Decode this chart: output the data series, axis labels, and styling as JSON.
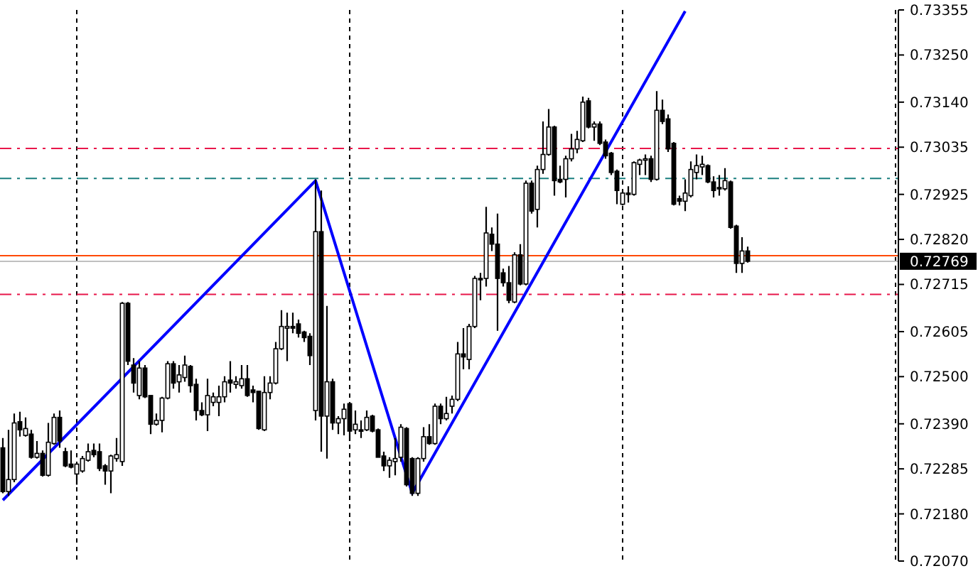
{
  "chart_data": {
    "type": "candlestick",
    "categories": [
      null,
      null,
      null,
      null,
      null,
      null,
      null,
      null,
      null,
      null,
      null,
      null,
      null,
      null,
      null,
      null,
      null,
      null,
      null,
      null,
      null,
      null,
      null,
      null,
      null,
      null,
      null,
      null,
      null,
      null,
      null,
      null,
      null,
      null,
      null,
      null,
      null,
      null,
      null,
      null,
      null,
      null,
      null,
      null,
      null,
      null,
      null,
      null,
      null,
      null,
      null,
      null,
      null,
      null,
      null,
      null,
      null,
      null,
      null,
      null,
      null,
      null,
      null,
      null,
      null,
      null,
      null,
      null,
      null,
      null,
      null,
      null,
      null,
      null,
      null,
      null,
      null,
      null,
      null,
      null,
      null,
      null,
      null,
      null,
      null,
      null,
      null,
      null,
      null,
      null,
      null,
      null,
      null,
      null,
      null,
      null,
      null,
      null,
      null,
      null,
      null,
      null,
      null,
      null,
      null,
      null,
      null,
      null,
      null,
      null,
      null,
      null,
      null,
      null,
      null,
      null,
      null,
      null,
      null,
      null,
      null,
      null,
      null,
      null,
      null,
      null,
      null,
      null,
      null,
      null,
      null,
      null,
      null,
      null,
      null,
      null,
      null,
      null,
      null,
      null,
      null,
      null,
      null,
      null,
      null,
      null,
      null,
      null,
      null,
      null,
      null,
      null,
      null,
      null,
      null,
      null,
      null,
      null
    ],
    "ohlc": [
      [
        0.72334,
        0.72357,
        0.72228,
        0.72232
      ],
      [
        0.72232,
        0.72376,
        0.72222,
        0.7226
      ],
      [
        0.7226,
        0.72414,
        0.72254,
        0.72392
      ],
      [
        0.72395,
        0.72418,
        0.7236,
        0.72376
      ],
      [
        0.72363,
        0.72405,
        0.7236,
        0.72379
      ],
      [
        0.72366,
        0.72376,
        0.72309,
        0.72312
      ],
      [
        0.72312,
        0.7235,
        0.72309,
        0.72321
      ],
      [
        0.72321,
        0.72328,
        0.72267,
        0.7227
      ],
      [
        0.7227,
        0.72392,
        0.72267,
        0.72347
      ],
      [
        0.72344,
        0.72414,
        0.72341,
        0.72405
      ],
      [
        0.72405,
        0.72421,
        0.72334,
        0.7235
      ],
      [
        0.72325,
        0.72334,
        0.72289,
        0.72292
      ],
      [
        0.72296,
        0.72328,
        0.72286,
        0.72289
      ],
      [
        0.72273,
        0.72299,
        0.72248,
        0.72296
      ],
      [
        0.7228,
        0.72315,
        0.72276,
        0.72309
      ],
      [
        0.72305,
        0.72344,
        0.72302,
        0.72325
      ],
      [
        0.72328,
        0.72344,
        0.72312,
        0.72318
      ],
      [
        0.72325,
        0.72344,
        0.7228,
        0.72286
      ],
      [
        0.72292,
        0.72296,
        0.72248,
        0.7228
      ],
      [
        0.7228,
        0.72318,
        0.72228,
        0.72315
      ],
      [
        0.72309,
        0.72357,
        0.72302,
        0.72318
      ],
      [
        0.72302,
        0.72674,
        0.72292,
        0.72671
      ],
      [
        0.72671,
        0.72674,
        0.72527,
        0.72536
      ],
      [
        0.72527,
        0.72543,
        0.72463,
        0.72485
      ],
      [
        0.72456,
        0.72536,
        0.72447,
        0.7252
      ],
      [
        0.7252,
        0.72527,
        0.7245,
        0.72453
      ],
      [
        0.72456,
        0.72456,
        0.72366,
        0.72389
      ],
      [
        0.72389,
        0.72414,
        0.72386,
        0.72398
      ],
      [
        0.72398,
        0.72453,
        0.7237,
        0.7245
      ],
      [
        0.7245,
        0.72536,
        0.72447,
        0.7253
      ],
      [
        0.7253,
        0.72536,
        0.72472,
        0.72485
      ],
      [
        0.72488,
        0.72527,
        0.72463,
        0.72504
      ],
      [
        0.72498,
        0.72549,
        0.72488,
        0.72527
      ],
      [
        0.72524,
        0.72527,
        0.72463,
        0.72479
      ],
      [
        0.72482,
        0.72495,
        0.72398,
        0.72421
      ],
      [
        0.72421,
        0.7244,
        0.72408,
        0.72411
      ],
      [
        0.72411,
        0.72495,
        0.72373,
        0.72456
      ],
      [
        0.7244,
        0.72463,
        0.72431,
        0.72453
      ],
      [
        0.7244,
        0.72479,
        0.72408,
        0.72453
      ],
      [
        0.72453,
        0.72501,
        0.7244,
        0.72488
      ],
      [
        0.72492,
        0.72536,
        0.72463,
        0.72485
      ],
      [
        0.72482,
        0.72501,
        0.72472,
        0.72488
      ],
      [
        0.72479,
        0.72527,
        0.72472,
        0.72495
      ],
      [
        0.72495,
        0.72527,
        0.72453,
        0.72456
      ],
      [
        0.72469,
        0.72479,
        0.7244,
        0.72463
      ],
      [
        0.72466,
        0.72466,
        0.72376,
        0.72379
      ],
      [
        0.72376,
        0.72501,
        0.72373,
        0.72463
      ],
      [
        0.72463,
        0.72501,
        0.72447,
        0.72485
      ],
      [
        0.72485,
        0.72581,
        0.72482,
        0.72565
      ],
      [
        0.72565,
        0.72655,
        0.72562,
        0.72617
      ],
      [
        0.72613,
        0.72649,
        0.72536,
        0.72617
      ],
      [
        0.72617,
        0.72649,
        0.72601,
        0.72613
      ],
      [
        0.72623,
        0.72633,
        0.72591,
        0.72601
      ],
      [
        0.72604,
        0.72607,
        0.72581,
        0.72591
      ],
      [
        0.72594,
        0.72601,
        0.72527,
        0.72549
      ],
      [
        0.72421,
        0.7296,
        0.72398,
        0.72838
      ],
      [
        0.72838,
        0.72934,
        0.72325,
        0.72408
      ],
      [
        0.72408,
        0.72665,
        0.72309,
        0.72488
      ],
      [
        0.72488,
        0.72495,
        0.72376,
        0.72392
      ],
      [
        0.72392,
        0.72408,
        0.72366,
        0.72402
      ],
      [
        0.72402,
        0.72437,
        0.72363,
        0.72424
      ],
      [
        0.72437,
        0.7244,
        0.7235,
        0.72373
      ],
      [
        0.72376,
        0.72421,
        0.72366,
        0.72389
      ],
      [
        0.72376,
        0.72398,
        0.72357,
        0.72373
      ],
      [
        0.72376,
        0.72421,
        0.72373,
        0.72405
      ],
      [
        0.72408,
        0.72411,
        0.7237,
        0.72373
      ],
      [
        0.72376,
        0.72379,
        0.72312,
        0.72312
      ],
      [
        0.72315,
        0.72325,
        0.7228,
        0.72292
      ],
      [
        0.72292,
        0.72312,
        0.72264,
        0.72305
      ],
      [
        0.72302,
        0.72357,
        0.7227,
        0.72309
      ],
      [
        0.72312,
        0.72389,
        0.72302,
        0.72382
      ],
      [
        0.72379,
        0.72382,
        0.72244,
        0.72248
      ],
      [
        0.72309,
        0.72312,
        0.72222,
        0.72228
      ],
      [
        0.72228,
        0.72312,
        0.72222,
        0.72309
      ],
      [
        0.72309,
        0.72382,
        0.72302,
        0.7236
      ],
      [
        0.7236,
        0.72389,
        0.72341,
        0.72344
      ],
      [
        0.72344,
        0.72437,
        0.72341,
        0.72431
      ],
      [
        0.72431,
        0.72437,
        0.72389,
        0.72402
      ],
      [
        0.72402,
        0.72453,
        0.72398,
        0.72414
      ],
      [
        0.72431,
        0.72456,
        0.72414,
        0.72447
      ],
      [
        0.72447,
        0.72581,
        0.72443,
        0.72553
      ],
      [
        0.72553,
        0.72613,
        0.72517,
        0.72546
      ],
      [
        0.7254,
        0.72623,
        0.72517,
        0.72617
      ],
      [
        0.72617,
        0.72735,
        0.72613,
        0.72729
      ],
      [
        0.72729,
        0.72742,
        0.72678,
        0.72726
      ],
      [
        0.72729,
        0.72896,
        0.7271,
        0.72835
      ],
      [
        0.72832,
        0.72848,
        0.72793,
        0.72809
      ],
      [
        0.72809,
        0.7288,
        0.72607,
        0.72729
      ],
      [
        0.72742,
        0.72752,
        0.7271,
        0.72719
      ],
      [
        0.72719,
        0.72758,
        0.72671,
        0.72678
      ],
      [
        0.72674,
        0.7279,
        0.72671,
        0.72784
      ],
      [
        0.72784,
        0.72809,
        0.72713,
        0.72716
      ],
      [
        0.72716,
        0.72957,
        0.72713,
        0.72951
      ],
      [
        0.72951,
        0.72957,
        0.7288,
        0.72886
      ],
      [
        0.7289,
        0.72992,
        0.72848,
        0.72983
      ],
      [
        0.72983,
        0.73095,
        0.72973,
        0.73018
      ],
      [
        0.73018,
        0.73124,
        0.73015,
        0.73082
      ],
      [
        0.73082,
        0.73085,
        0.72922,
        0.72957
      ],
      [
        0.7296,
        0.72992,
        0.72951,
        0.72954
      ],
      [
        0.7296,
        0.73015,
        0.72918,
        0.73008
      ],
      [
        0.73008,
        0.73066,
        0.73002,
        0.73031
      ],
      [
        0.73031,
        0.73073,
        0.73021,
        0.73053
      ],
      [
        0.7305,
        0.73153,
        0.73047,
        0.7314
      ],
      [
        0.73143,
        0.7315,
        0.73079,
        0.73082
      ],
      [
        0.73082,
        0.73095,
        0.7305,
        0.73089
      ],
      [
        0.73089,
        0.73095,
        0.7304,
        0.73044
      ],
      [
        0.73047,
        0.73053,
        0.73008,
        0.73015
      ],
      [
        0.73021,
        0.73024,
        0.7297,
        0.72976
      ],
      [
        0.72979,
        0.72983,
        0.72902,
        0.72934
      ],
      [
        0.72902,
        0.72934,
        0.72899,
        0.72928
      ],
      [
        0.72928,
        0.72944,
        0.72906,
        0.72925
      ],
      [
        0.72925,
        0.73002,
        0.72922,
        0.72999
      ],
      [
        0.72995,
        0.73008,
        0.7297,
        0.73005
      ],
      [
        0.73005,
        0.73018,
        0.7297,
        0.73008
      ],
      [
        0.73008,
        0.73015,
        0.72954,
        0.7296
      ],
      [
        0.7296,
        0.73166,
        0.72957,
        0.73121
      ],
      [
        0.73121,
        0.73146,
        0.73089,
        0.73095
      ],
      [
        0.73101,
        0.73111,
        0.73024,
        0.73031
      ],
      [
        0.73044,
        0.73047,
        0.72899,
        0.72902
      ],
      [
        0.72915,
        0.72922,
        0.72899,
        0.72909
      ],
      [
        0.72909,
        0.7296,
        0.72886,
        0.72928
      ],
      [
        0.72922,
        0.73002,
        0.72918,
        0.72983
      ],
      [
        0.72976,
        0.73018,
        0.7296,
        0.72992
      ],
      [
        0.72989,
        0.73015,
        0.7297,
        0.72995
      ],
      [
        0.72992,
        0.72995,
        0.72951,
        0.72954
      ],
      [
        0.72954,
        0.72967,
        0.72918,
        0.72934
      ],
      [
        0.72941,
        0.7297,
        0.72922,
        0.72938
      ],
      [
        0.72938,
        0.72986,
        0.72934,
        0.72957
      ],
      [
        0.72954,
        0.72957,
        0.72845,
        0.72848
      ],
      [
        0.72851,
        0.72854,
        0.72742,
        0.72764
      ],
      [
        0.72764,
        0.72825,
        0.72742,
        0.72793
      ],
      [
        0.72793,
        0.72803,
        0.72766,
        0.72769
      ],
      null,
      null,
      null,
      null,
      null,
      null,
      null,
      null,
      null,
      null,
      null,
      null,
      null,
      null,
      null,
      null,
      null,
      null,
      null,
      null,
      null,
      null,
      null,
      null,
      null,
      null
    ],
    "series": [
      {
        "type": "line",
        "color": "#0000ff",
        "values": [
          0.72212,
          null,
          null,
          null,
          null,
          null,
          null,
          null,
          null,
          null,
          null,
          null,
          null,
          null,
          null,
          null,
          null,
          null,
          null,
          null,
          null,
          null,
          null,
          null,
          null,
          null,
          null,
          null,
          null,
          null,
          null,
          null,
          null,
          null,
          null,
          null,
          null,
          null,
          null,
          null,
          null,
          null,
          null,
          null,
          null,
          null,
          null,
          null,
          null,
          null,
          null,
          null,
          null,
          null,
          null,
          0.72957,
          null,
          null,
          null,
          null,
          null,
          null,
          null,
          null,
          null,
          null,
          null,
          null,
          null,
          null,
          null,
          null,
          0.72228,
          null,
          null,
          null,
          null,
          null,
          null,
          null,
          null,
          null,
          null,
          null,
          null,
          null,
          null,
          null,
          null,
          null,
          null,
          null,
          null,
          null,
          null,
          null,
          null,
          null,
          null,
          null,
          null,
          null,
          null,
          null,
          null,
          null,
          null,
          null,
          null,
          null,
          null,
          null,
          null,
          null,
          null,
          null,
          null,
          null,
          null,
          null,
          0.73352,
          null,
          null,
          null,
          null,
          null,
          null,
          null,
          null,
          null,
          null,
          null,
          null,
          null,
          null,
          null,
          null,
          null,
          null,
          null,
          null,
          null,
          null,
          null,
          null,
          null,
          null,
          null,
          null,
          null,
          null,
          null,
          null,
          null,
          null,
          null,
          null,
          null
        ]
      }
    ],
    "ylim": [
      0.7207,
      0.73355
    ],
    "yticks": [
      0.73355,
      {
        "value": 0.7325,
        "label": "0.73250"
      },
      {
        "value": 0.7314,
        "label": "0.73140"
      },
      0.73035,
      0.72925,
      {
        "value": 0.7282,
        "label": "0.72820"
      },
      0.72715,
      0.72605,
      {
        "value": 0.725,
        "label": "0.72500"
      },
      {
        "value": 0.7239,
        "label": "0.72390"
      },
      0.72285,
      {
        "value": 0.7218,
        "label": "0.72180"
      },
      {
        "value": 0.7207,
        "label": "0.72070"
      }
    ],
    "ref_lines": [
      {
        "axis": "y",
        "value": 0.73032,
        "color": "#e8174a",
        "line_style": "dashed"
      },
      {
        "axis": "y",
        "value": 0.72962,
        "color": "#1a7f7f",
        "line_style": "dashed"
      },
      {
        "axis": "y",
        "value": 0.72692,
        "color": "#e8174a",
        "line_style": "dashed"
      },
      {
        "axis": "y",
        "value": 0.72782,
        "color": "#ff4a00",
        "line_style": "solid"
      },
      {
        "axis": "y",
        "value": 0.72769,
        "color": "#c0c0c0",
        "line_style": "solid",
        "label": "0.72769"
      }
    ]
  }
}
